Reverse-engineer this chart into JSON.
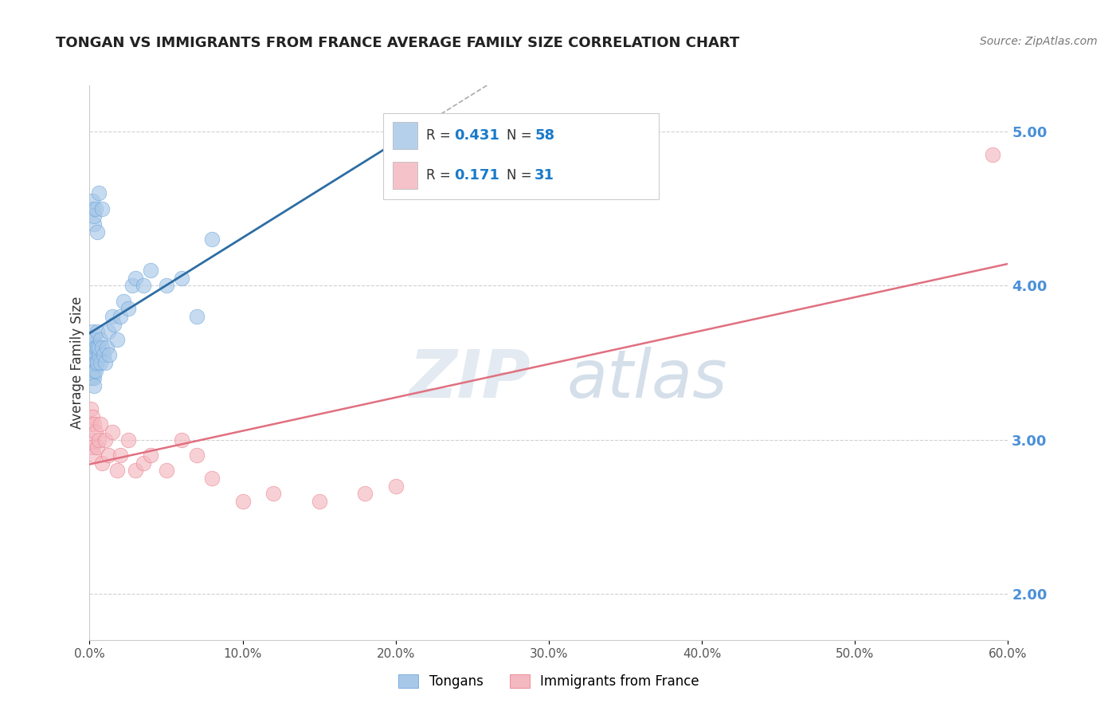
{
  "title": "TONGAN VS IMMIGRANTS FROM FRANCE AVERAGE FAMILY SIZE CORRELATION CHART",
  "source": "Source: ZipAtlas.com",
  "ylabel": "Average Family Size",
  "xlim": [
    0.0,
    0.6
  ],
  "ylim": [
    1.7,
    5.3
  ],
  "yticks": [
    2.0,
    3.0,
    4.0,
    5.0
  ],
  "ytick_labels": [
    "2.00",
    "3.00",
    "4.00",
    "5.00"
  ],
  "xticks": [
    0.0,
    0.1,
    0.2,
    0.3,
    0.4,
    0.5,
    0.6
  ],
  "xtick_labels": [
    "0.0%",
    "10.0%",
    "20.0%",
    "30.0%",
    "40.0%",
    "50.0%",
    "60.0%"
  ],
  "blue_color": "#a8c8e8",
  "blue_edge_color": "#5b9bd5",
  "blue_line_color": "#2e6da4",
  "pink_color": "#f4b8c1",
  "pink_edge_color": "#e8707a",
  "pink_line_color": "#e07080",
  "legend_R1": "0.431",
  "legend_N1": "58",
  "legend_R2": "0.171",
  "legend_N2": "31",
  "legend_label1": "Tongans",
  "legend_label2": "Immigrants from France",
  "background_color": "#ffffff",
  "grid_color": "#cccccc",
  "blue_x": [
    0.001,
    0.001,
    0.001,
    0.001,
    0.001,
    0.002,
    0.002,
    0.002,
    0.002,
    0.002,
    0.002,
    0.002,
    0.003,
    0.003,
    0.003,
    0.003,
    0.003,
    0.003,
    0.003,
    0.004,
    0.004,
    0.004,
    0.004,
    0.005,
    0.005,
    0.005,
    0.006,
    0.006,
    0.007,
    0.007,
    0.008,
    0.009,
    0.01,
    0.011,
    0.012,
    0.013,
    0.015,
    0.016,
    0.018,
    0.02,
    0.022,
    0.025,
    0.028,
    0.03,
    0.035,
    0.04,
    0.05,
    0.06,
    0.07,
    0.08,
    0.002,
    0.002,
    0.003,
    0.003,
    0.004,
    0.005,
    0.006,
    0.008
  ],
  "blue_y": [
    3.5,
    3.55,
    3.6,
    3.45,
    3.4,
    3.55,
    3.6,
    3.5,
    3.65,
    3.45,
    3.7,
    3.4,
    3.55,
    3.6,
    3.5,
    3.65,
    3.45,
    3.4,
    3.35,
    3.55,
    3.6,
    3.5,
    3.45,
    3.6,
    3.5,
    3.7,
    3.55,
    3.6,
    3.65,
    3.5,
    3.6,
    3.55,
    3.5,
    3.6,
    3.7,
    3.55,
    3.8,
    3.75,
    3.65,
    3.8,
    3.9,
    3.85,
    4.0,
    4.05,
    4.0,
    4.1,
    4.0,
    4.05,
    3.8,
    4.3,
    4.5,
    4.55,
    4.4,
    4.45,
    4.5,
    4.35,
    4.6,
    4.5
  ],
  "pink_x": [
    0.001,
    0.001,
    0.002,
    0.002,
    0.002,
    0.003,
    0.003,
    0.004,
    0.005,
    0.006,
    0.007,
    0.008,
    0.01,
    0.012,
    0.015,
    0.018,
    0.02,
    0.025,
    0.03,
    0.035,
    0.04,
    0.05,
    0.06,
    0.07,
    0.08,
    0.1,
    0.12,
    0.15,
    0.18,
    0.2,
    0.59
  ],
  "pink_y": [
    3.2,
    3.1,
    3.0,
    2.95,
    3.15,
    3.1,
    2.9,
    3.05,
    2.95,
    3.0,
    3.1,
    2.85,
    3.0,
    2.9,
    3.05,
    2.8,
    2.9,
    3.0,
    2.8,
    2.85,
    2.9,
    2.8,
    3.0,
    2.9,
    2.75,
    2.6,
    2.65,
    2.6,
    2.65,
    2.7,
    4.85
  ]
}
